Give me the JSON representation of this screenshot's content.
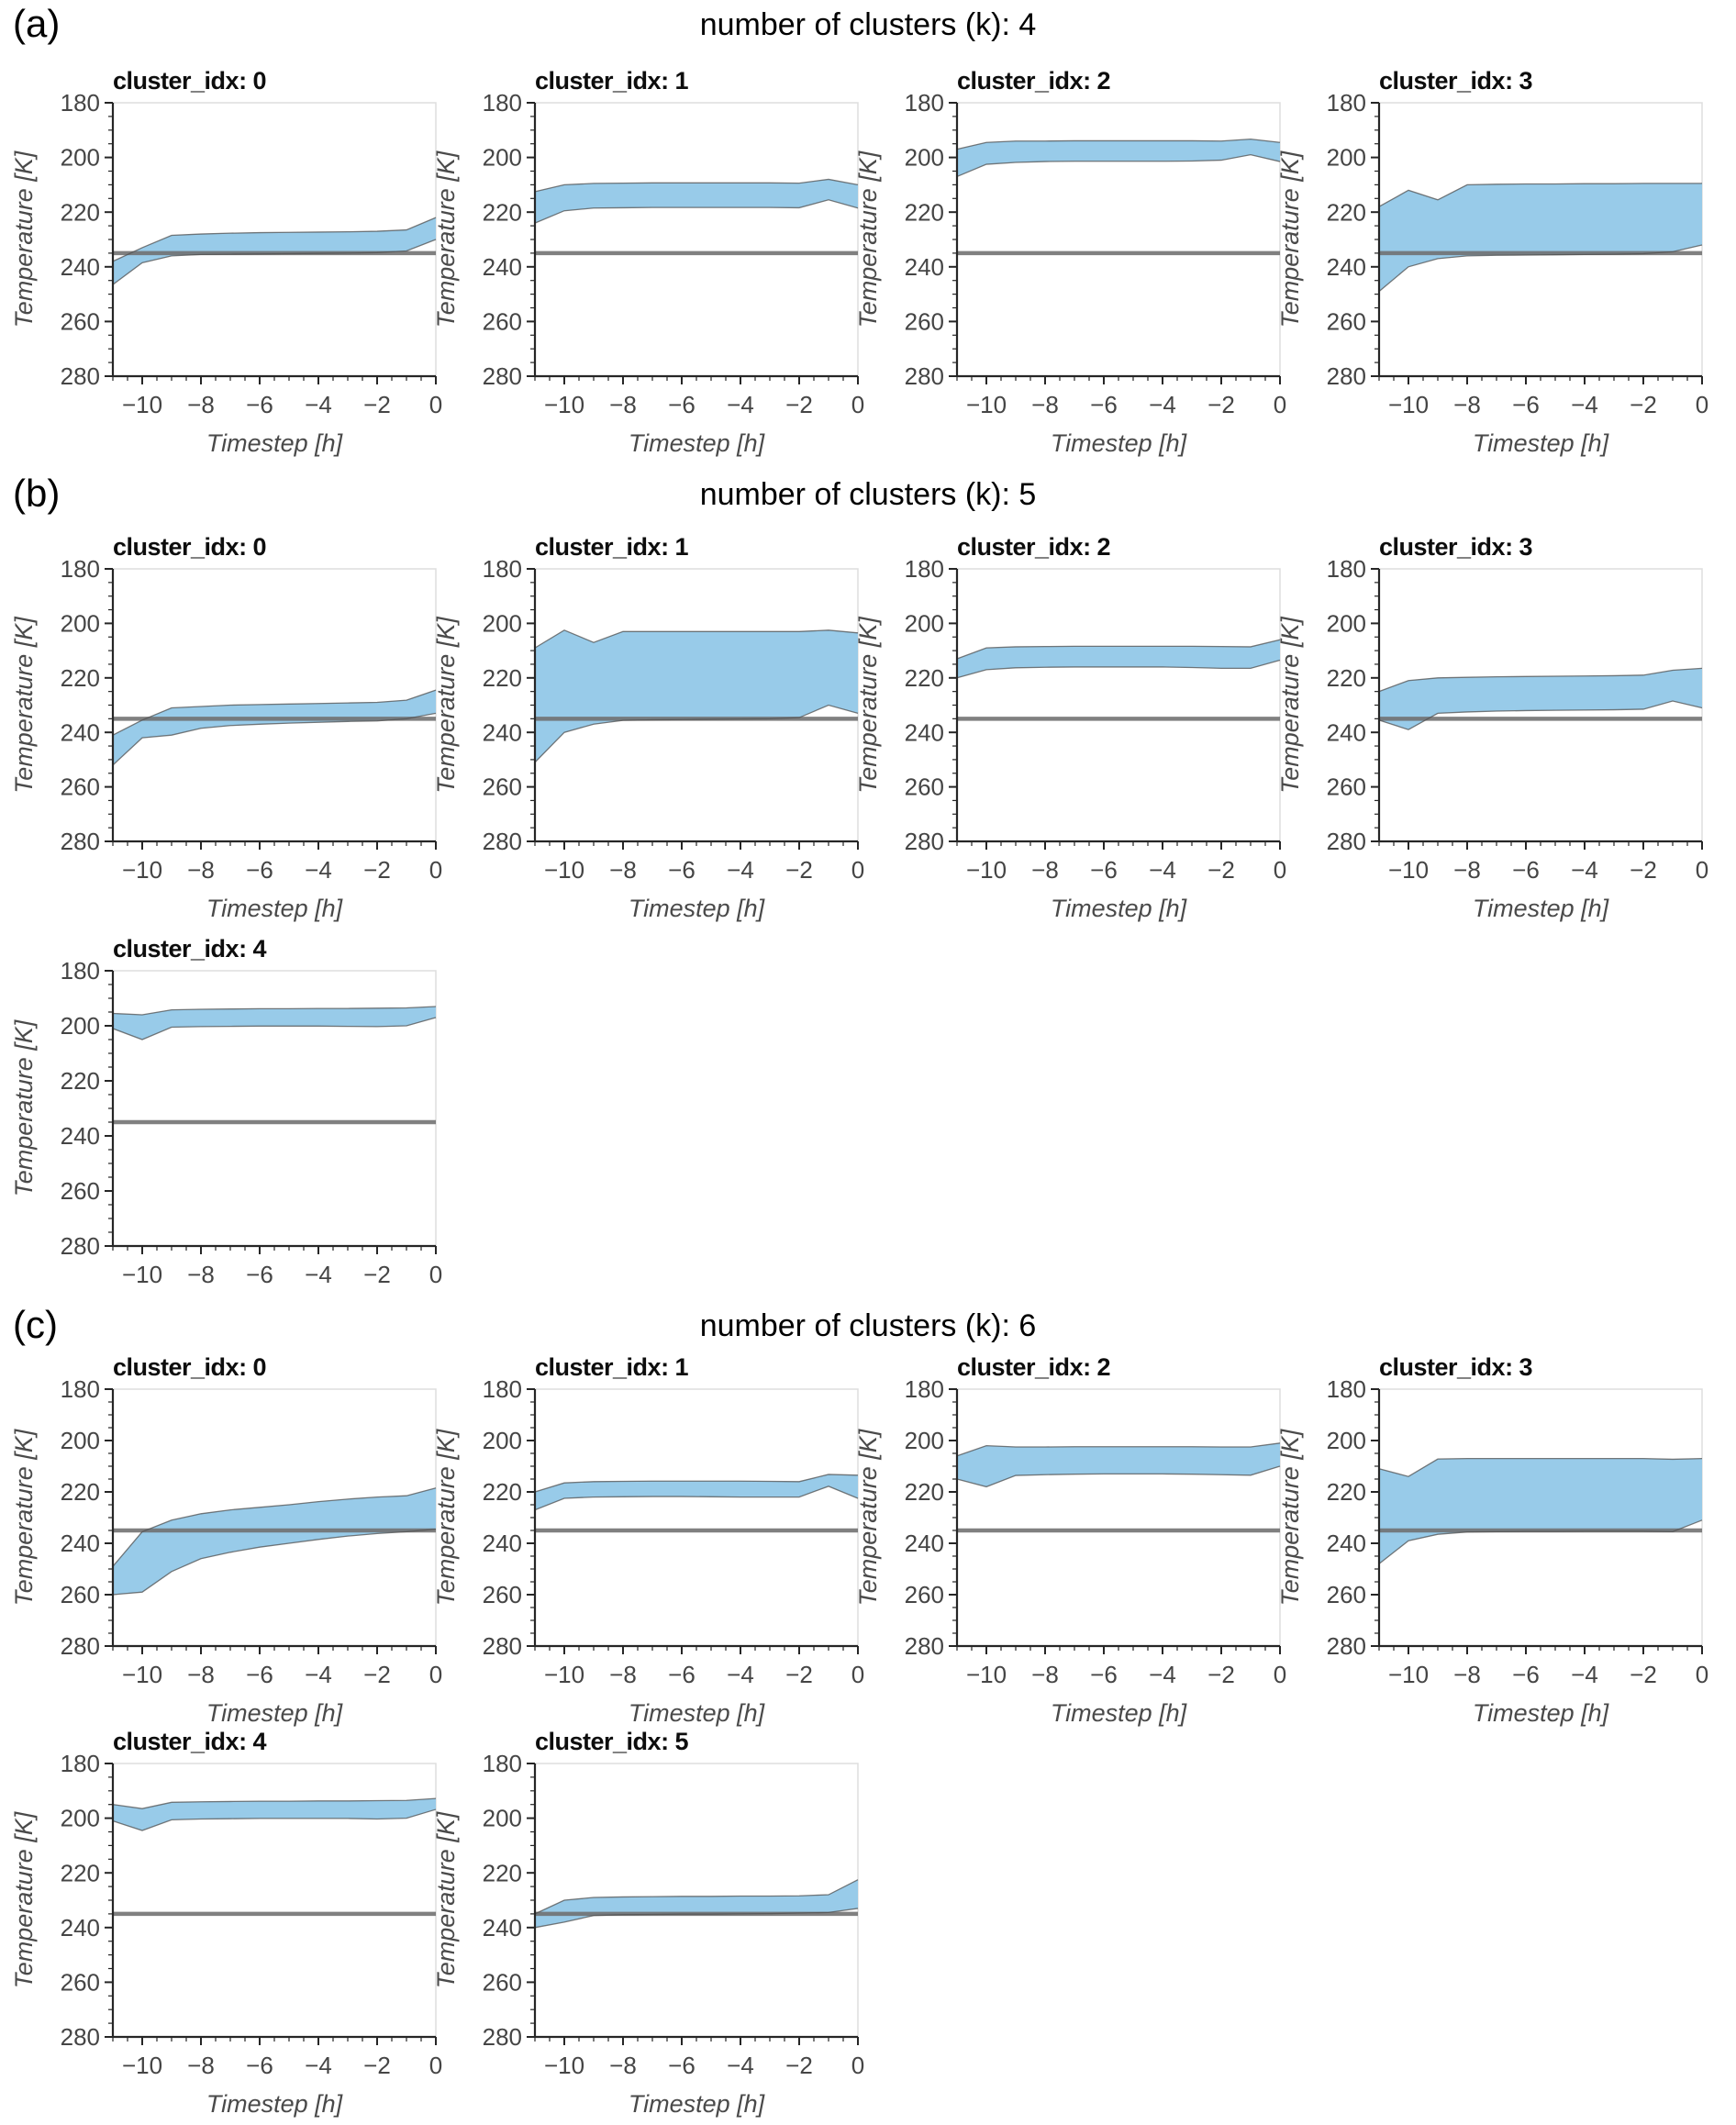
{
  "panels": [
    {
      "label": "(a)",
      "header": "number of clusters (k): 4"
    },
    {
      "label": "(b)",
      "header": "number of clusters (k): 5"
    },
    {
      "label": "(c)",
      "header": "number of clusters (k): 6"
    }
  ],
  "axis": {
    "xlabel": "Timestep [h]",
    "ylabel": "Temperature [K]",
    "xticks": [
      -10,
      -8,
      -6,
      -4,
      -2,
      0
    ],
    "yticks": [
      180,
      200,
      220,
      240,
      260,
      280
    ],
    "xlim": [
      -11,
      0
    ],
    "ylim": [
      180,
      280
    ],
    "y_inverted": true,
    "refline_K": 235
  },
  "colors": {
    "band_fill": "#92c8e8",
    "band_edge": "#4f4f4f",
    "refline": "#6e6e6e",
    "spine": "#262626",
    "tick_label": "#454545",
    "axis_label": "#4a4a4a",
    "title": "#0d0d0d",
    "frame": "#dedede"
  },
  "chart_data": [
    {
      "type": "area",
      "panel_label": "(a)",
      "title": "number of clusters (k): 4",
      "k": 4,
      "xlabel": "Timestep [h]",
      "ylabel": "Temperature [K]",
      "x": [
        -11,
        -10,
        -9,
        -8,
        -7,
        -6,
        -5,
        -4,
        -3,
        -2,
        -1,
        0
      ],
      "xticks": [
        -10,
        -8,
        -6,
        -4,
        -2,
        0
      ],
      "yticks": [
        180,
        200,
        220,
        240,
        260,
        280
      ],
      "xlim": [
        -11,
        0
      ],
      "ylim": [
        180,
        280
      ],
      "y_inverted": true,
      "refline": 235,
      "series": [
        {
          "name": "cluster_idx: 0",
          "band_upper": [
            238,
            233,
            228.5,
            228,
            227.7,
            227.5,
            227.4,
            227.3,
            227.2,
            227,
            226.5,
            222
          ],
          "band_lower": [
            246.5,
            238.5,
            236,
            235.5,
            235.4,
            235.3,
            235.2,
            235.1,
            235,
            234.8,
            234.2,
            230
          ]
        },
        {
          "name": "cluster_idx: 1",
          "band_upper": [
            212.5,
            210,
            209.5,
            209.4,
            209.3,
            209.3,
            209.3,
            209.3,
            209.3,
            209.4,
            208,
            210
          ],
          "band_lower": [
            224,
            219.5,
            218.5,
            218.4,
            218.3,
            218.3,
            218.3,
            218.3,
            218.3,
            218.4,
            215.5,
            218.5
          ]
        },
        {
          "name": "cluster_idx: 2",
          "band_upper": [
            197,
            194.5,
            194,
            194,
            193.9,
            193.9,
            193.9,
            193.9,
            193.9,
            194,
            193.3,
            194.5
          ],
          "band_lower": [
            207,
            202.5,
            201.8,
            201.5,
            201.4,
            201.4,
            201.4,
            201.4,
            201.3,
            201,
            199,
            201.5
          ]
        },
        {
          "name": "cluster_idx: 3",
          "band_upper": [
            218,
            212,
            215.5,
            210,
            209.8,
            209.7,
            209.7,
            209.6,
            209.6,
            209.5,
            209.5,
            209.5
          ],
          "band_lower": [
            249,
            240,
            237,
            236,
            235.8,
            235.7,
            235.6,
            235.5,
            235.4,
            235.2,
            234.5,
            232
          ]
        }
      ]
    },
    {
      "type": "area",
      "panel_label": "(b)",
      "title": "number of clusters (k): 5",
      "k": 5,
      "xlabel": "Timestep [h]",
      "ylabel": "Temperature [K]",
      "x": [
        -11,
        -10,
        -9,
        -8,
        -7,
        -6,
        -5,
        -4,
        -3,
        -2,
        -1,
        0
      ],
      "xticks": [
        -10,
        -8,
        -6,
        -4,
        -2,
        0
      ],
      "yticks": [
        180,
        200,
        220,
        240,
        260,
        280
      ],
      "xlim": [
        -11,
        0
      ],
      "ylim": [
        180,
        280
      ],
      "y_inverted": true,
      "refline": 235,
      "series": [
        {
          "name": "cluster_idx: 0",
          "band_upper": [
            241,
            235.5,
            231,
            230.5,
            230,
            229.8,
            229.6,
            229.4,
            229.2,
            229,
            228.2,
            224.5
          ],
          "band_lower": [
            252,
            242,
            241,
            238.5,
            237.5,
            237,
            236.6,
            236.3,
            236,
            235.8,
            235,
            233
          ]
        },
        {
          "name": "cluster_idx: 1",
          "band_upper": [
            209,
            202.5,
            207,
            203,
            203,
            203,
            203,
            203,
            203,
            203,
            202.5,
            203.5
          ],
          "band_lower": [
            251,
            240,
            237,
            235.6,
            235.4,
            235.3,
            235.2,
            235.1,
            235,
            234.6,
            230,
            233
          ]
        },
        {
          "name": "cluster_idx: 2",
          "band_upper": [
            213,
            209,
            208.6,
            208.5,
            208.4,
            208.4,
            208.4,
            208.4,
            208.4,
            208.5,
            208.6,
            206
          ],
          "band_lower": [
            220,
            217,
            216.3,
            216.1,
            216,
            216,
            216,
            216,
            216.2,
            216.5,
            216.5,
            213.5
          ]
        },
        {
          "name": "cluster_idx: 3",
          "band_upper": [
            225,
            221,
            220,
            219.8,
            219.6,
            219.5,
            219.4,
            219.3,
            219.2,
            219,
            217.2,
            216.5
          ],
          "band_lower": [
            235.5,
            239,
            233,
            232.5,
            232.2,
            232,
            231.9,
            231.8,
            231.7,
            231.5,
            228.5,
            231
          ]
        },
        {
          "name": "cluster_idx: 4",
          "band_upper": [
            195.5,
            196,
            194.2,
            194,
            193.9,
            193.8,
            193.8,
            193.7,
            193.7,
            193.6,
            193.5,
            193
          ],
          "band_lower": [
            201,
            205,
            200.5,
            200.3,
            200.2,
            200.1,
            200.1,
            200.1,
            200.2,
            200.3,
            200,
            197
          ]
        }
      ]
    },
    {
      "type": "area",
      "panel_label": "(c)",
      "title": "number of clusters (k): 6",
      "k": 6,
      "xlabel": "Timestep [h]",
      "ylabel": "Temperature [K]",
      "x": [
        -11,
        -10,
        -9,
        -8,
        -7,
        -6,
        -5,
        -4,
        -3,
        -2,
        -1,
        0
      ],
      "xticks": [
        -10,
        -8,
        -6,
        -4,
        -2,
        0
      ],
      "yticks": [
        180,
        200,
        220,
        240,
        260,
        280
      ],
      "xlim": [
        -11,
        0
      ],
      "ylim": [
        180,
        280
      ],
      "y_inverted": true,
      "refline": 235,
      "series": [
        {
          "name": "cluster_idx: 0",
          "band_upper": [
            249,
            235.5,
            231,
            228.5,
            227,
            226,
            225,
            223.8,
            222.8,
            222,
            221.5,
            218.5
          ],
          "band_lower": [
            260,
            259,
            251,
            246,
            243.5,
            241.5,
            240,
            238.5,
            237.2,
            236.2,
            235.5,
            234.5
          ]
        },
        {
          "name": "cluster_idx: 1",
          "band_upper": [
            220,
            216.5,
            216,
            215.9,
            215.8,
            215.8,
            215.8,
            215.8,
            215.9,
            216,
            213.2,
            213.5
          ],
          "band_lower": [
            227,
            222.5,
            222,
            221.9,
            221.8,
            221.8,
            221.9,
            222,
            222,
            222,
            217.8,
            222.5
          ]
        },
        {
          "name": "cluster_idx: 2",
          "band_upper": [
            206,
            202,
            202.5,
            202.5,
            202.4,
            202.4,
            202.4,
            202.4,
            202.4,
            202.5,
            202.5,
            201
          ],
          "band_lower": [
            215,
            218,
            213.6,
            213.3,
            213.1,
            213,
            213,
            213,
            213.1,
            213.3,
            213.5,
            210
          ]
        },
        {
          "name": "cluster_idx: 3",
          "band_upper": [
            211,
            214,
            207.2,
            207,
            207,
            207,
            207,
            207,
            207,
            207,
            207.3,
            207
          ],
          "band_lower": [
            248,
            239,
            236.5,
            235.6,
            235.5,
            235.4,
            235.4,
            235.3,
            235.3,
            235.3,
            235.5,
            231
          ]
        },
        {
          "name": "cluster_idx: 4",
          "band_upper": [
            195,
            196.5,
            194.2,
            194,
            193.9,
            193.8,
            193.8,
            193.7,
            193.7,
            193.6,
            193.5,
            192.8
          ],
          "band_lower": [
            201,
            204.5,
            200.6,
            200.3,
            200.2,
            200.1,
            200.1,
            200.1,
            200.1,
            200.3,
            200,
            196.8
          ]
        },
        {
          "name": "cluster_idx: 5",
          "band_upper": [
            235,
            230,
            229,
            228.8,
            228.7,
            228.6,
            228.6,
            228.5,
            228.5,
            228.4,
            228,
            222.5
          ],
          "band_lower": [
            240,
            238,
            235.6,
            235.3,
            235.2,
            235.1,
            235.1,
            235,
            234.9,
            234.7,
            234.5,
            233
          ]
        }
      ]
    }
  ]
}
